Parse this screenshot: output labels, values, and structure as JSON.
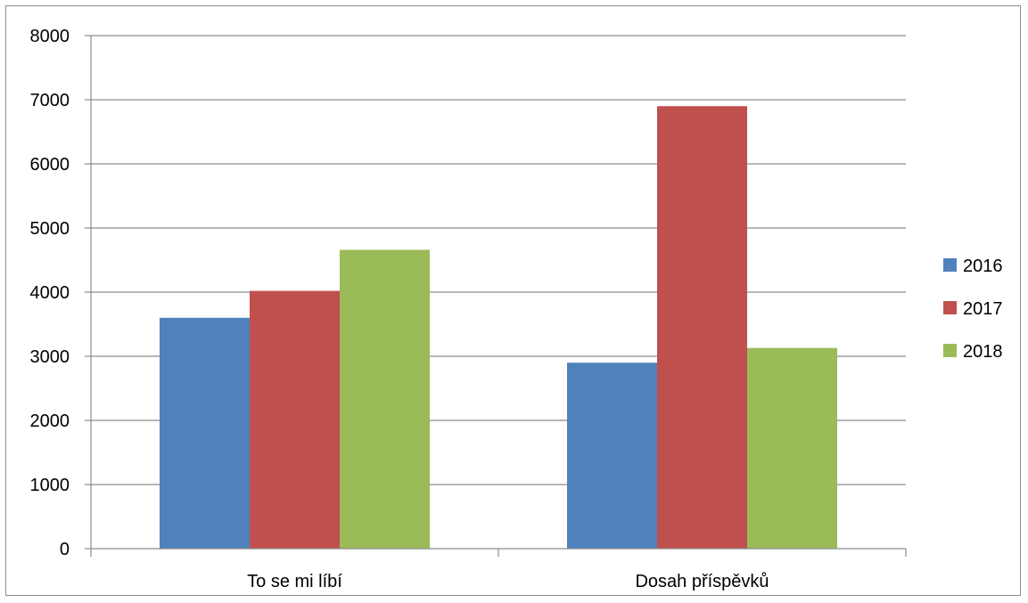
{
  "chart_data": {
    "type": "bar",
    "title": "",
    "xlabel": "",
    "ylabel": "",
    "categories": [
      "To se mi líbí",
      "Dosah příspěvků"
    ],
    "series": [
      {
        "name": "2016",
        "values": [
          3600,
          2900
        ],
        "color": "#4f81bd"
      },
      {
        "name": "2017",
        "values": [
          4020,
          6900
        ],
        "color": "#c0504d"
      },
      {
        "name": "2018",
        "values": [
          4660,
          3130
        ],
        "color": "#9bbb59"
      }
    ],
    "ylim": [
      0,
      8000
    ],
    "yticks": [
      "0",
      "1000",
      "2000",
      "3000",
      "4000",
      "5000",
      "6000",
      "7000",
      "8000"
    ],
    "grid": true,
    "legend_position": "right"
  }
}
